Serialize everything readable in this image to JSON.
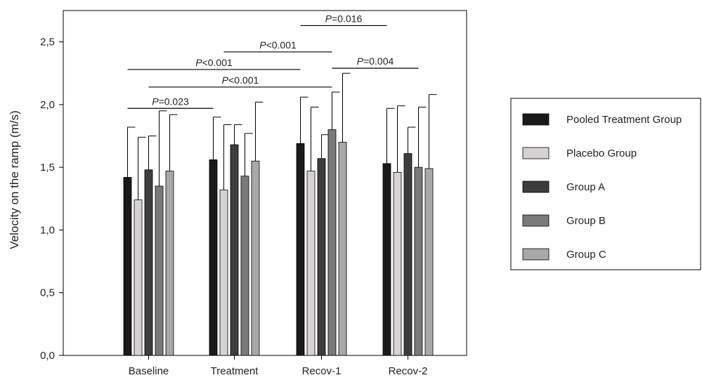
{
  "chart_data": {
    "type": "bar",
    "title": "",
    "xlabel": "",
    "ylabel": "Velocity on the ramp (m/s)",
    "ylim": [
      0,
      2.75
    ],
    "yticks": [
      "0,0",
      "0,5",
      "1,0",
      "1,5",
      "2,0",
      "2,5"
    ],
    "ytick_values": [
      0,
      0.5,
      1.0,
      1.5,
      2.0,
      2.5
    ],
    "grid": false,
    "legend_position": "right",
    "categories": [
      "Baseline",
      "Treatment",
      "Recov-1",
      "Recov-2"
    ],
    "series": [
      {
        "name": "Pooled Treatment Group",
        "color": "#1a1a1a",
        "values": [
          1.42,
          1.56,
          1.69,
          1.53
        ],
        "errors": [
          0.4,
          0.34,
          0.37,
          0.44
        ]
      },
      {
        "name": "Placebo Group",
        "color": "#d6d2d2",
        "values": [
          1.24,
          1.32,
          1.47,
          1.46
        ],
        "errors": [
          0.5,
          0.52,
          0.51,
          0.53
        ]
      },
      {
        "name": "Group A",
        "color": "#3d3d3d",
        "values": [
          1.48,
          1.68,
          1.57,
          1.61
        ],
        "errors": [
          0.27,
          0.16,
          0.19,
          0.21
        ]
      },
      {
        "name": "Group B",
        "color": "#7a7a7a",
        "values": [
          1.35,
          1.43,
          1.8,
          1.5
        ],
        "errors": [
          0.6,
          0.34,
          0.3,
          0.48
        ]
      },
      {
        "name": "Group C",
        "color": "#a8a8a8",
        "values": [
          1.47,
          1.55,
          1.7,
          1.49
        ],
        "errors": [
          0.45,
          0.47,
          0.55,
          0.59
        ]
      }
    ],
    "annotations": [
      {
        "text_prefix": "P",
        "text_rest": "=0.016",
        "level": 2.63,
        "from": {
          "cat": 2,
          "series": 0
        },
        "to": {
          "cat": 3,
          "series": 0
        }
      },
      {
        "text_prefix": "P",
        "text_rest": "<0.001",
        "level": 2.42,
        "from": {
          "cat": 1,
          "series": 1
        },
        "to": {
          "cat": 2,
          "series": 3
        }
      },
      {
        "text_prefix": "P",
        "text_rest": "<0.001",
        "level": 2.28,
        "from": {
          "cat": 0,
          "series": 0
        },
        "to": {
          "cat": 2,
          "series": 0
        }
      },
      {
        "text_prefix": "P",
        "text_rest": "=0.004",
        "level": 2.29,
        "from": {
          "cat": 2,
          "series": 3
        },
        "to": {
          "cat": 3,
          "series": 3
        }
      },
      {
        "text_prefix": "P",
        "text_rest": "<0.001",
        "level": 2.14,
        "from": {
          "cat": 0,
          "series": 2
        },
        "to": {
          "cat": 2,
          "series": 3
        }
      },
      {
        "text_prefix": "P",
        "text_rest": "=0.023",
        "level": 1.97,
        "from": {
          "cat": 0,
          "series": 0
        },
        "to": {
          "cat": 1,
          "series": 0
        }
      }
    ]
  }
}
